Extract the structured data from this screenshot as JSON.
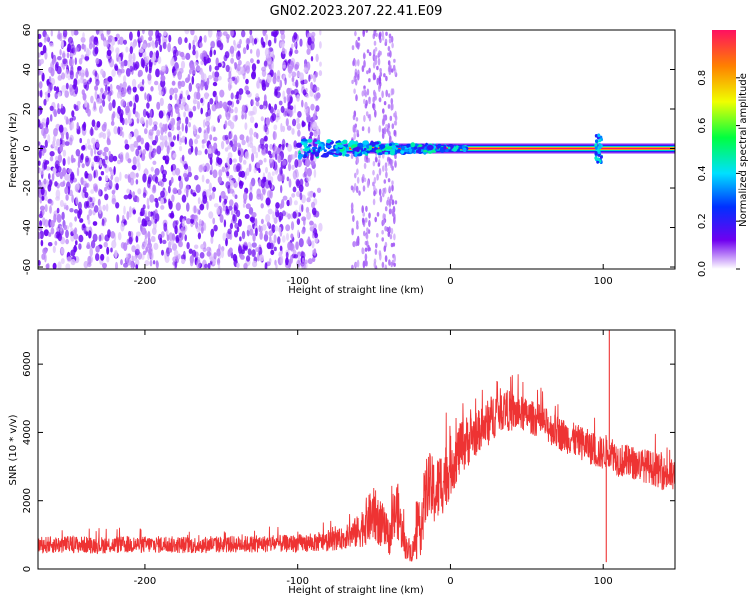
{
  "figure": {
    "title": "GN02.2023.207.22.41.E09"
  },
  "chart_data": [
    {
      "type": "heatmap",
      "name": "spectrogram",
      "xlabel": "Height of straight line (km)",
      "ylabel": "Frequency (Hz)",
      "xlim": [
        -270,
        147
      ],
      "ylim": [
        -61,
        60
      ],
      "xticks": [
        -200,
        -100,
        0,
        100
      ],
      "yticks": [
        60,
        40,
        20,
        0,
        -20,
        -40,
        -60
      ],
      "colorbar": {
        "label": "Normalized spectral amplitude",
        "range": [
          0,
          1
        ],
        "ticks": [
          "0.0",
          "0.2",
          "0.4",
          "0.6",
          "0.8"
        ],
        "tick_values": [
          0.0,
          0.2,
          0.4,
          0.6,
          0.8
        ],
        "colormap": [
          "#ffffff",
          "#7000f0",
          "#0030ff",
          "#00e0ff",
          "#00ff40",
          "#f0ff00",
          "#ff8000",
          "#ff1060"
        ]
      },
      "features": [
        {
          "label": "broadband noise",
          "x_range": [
            -270,
            -100
          ],
          "f_range": [
            -60,
            60
          ],
          "amplitude": 0.15
        },
        {
          "label": "sparse noise columns",
          "x_centers": [
            -62,
            -55,
            -48,
            -42,
            -38
          ],
          "amplitude": 0.1
        },
        {
          "label": "narrowband band near 0 Hz",
          "x_range": [
            -100,
            147
          ],
          "frequency": 0,
          "amplitude": 1.0
        },
        {
          "label": "transient burst",
          "x": 97,
          "frequency": 0,
          "amplitude": 0.3
        }
      ]
    },
    {
      "type": "line",
      "name": "snr",
      "xlabel": "Height of straight line (km)",
      "ylabel": "SNR (10 * v/v)",
      "xlim": [
        -270,
        147
      ],
      "ylim": [
        0,
        7000
      ],
      "xticks": [
        -200,
        -100,
        0,
        100
      ],
      "yticks": [
        0,
        2000,
        4000,
        6000
      ],
      "color": "#ee3333",
      "series": [
        {
          "x": [
            -270,
            -250,
            -230,
            -210,
            -190,
            -170,
            -150,
            -130,
            -110,
            -90,
            -80,
            -70,
            -60,
            -55,
            -50,
            -45,
            -40,
            -35,
            -30,
            -25,
            -20,
            -15,
            -10,
            -5,
            0,
            5,
            10,
            15,
            20,
            25,
            30,
            35,
            40,
            50,
            60,
            70,
            80,
            90,
            97,
            100,
            104,
            110,
            120,
            130,
            140,
            147
          ],
          "y": [
            700,
            720,
            700,
            710,
            720,
            700,
            720,
            730,
            740,
            760,
            800,
            900,
            1100,
            1400,
            1600,
            1300,
            900,
            1800,
            700,
            500,
            1200,
            2500,
            2200,
            2600,
            3000,
            3400,
            3700,
            3900,
            4100,
            4300,
            4600,
            4700,
            4600,
            4500,
            4300,
            4000,
            3800,
            3600,
            3400,
            3400,
            3500,
            3200,
            3100,
            3000,
            2800,
            2700
          ],
          "spike_amplitude": [
            250,
            250,
            250,
            250,
            250,
            250,
            250,
            250,
            260,
            260,
            280,
            320,
            500,
            700,
            800,
            700,
            500,
            900,
            400,
            300,
            900,
            1000,
            1000,
            1000,
            900,
            800,
            800,
            700,
            600,
            700,
            700,
            600,
            600,
            500,
            500,
            500,
            500,
            500,
            500,
            500,
            500,
            500,
            500,
            500,
            500,
            500
          ]
        }
      ],
      "annotations": [
        {
          "label": "spike",
          "x": 104,
          "y": 7000
        },
        {
          "label": "dip",
          "x": 102,
          "y": 200
        }
      ]
    }
  ]
}
